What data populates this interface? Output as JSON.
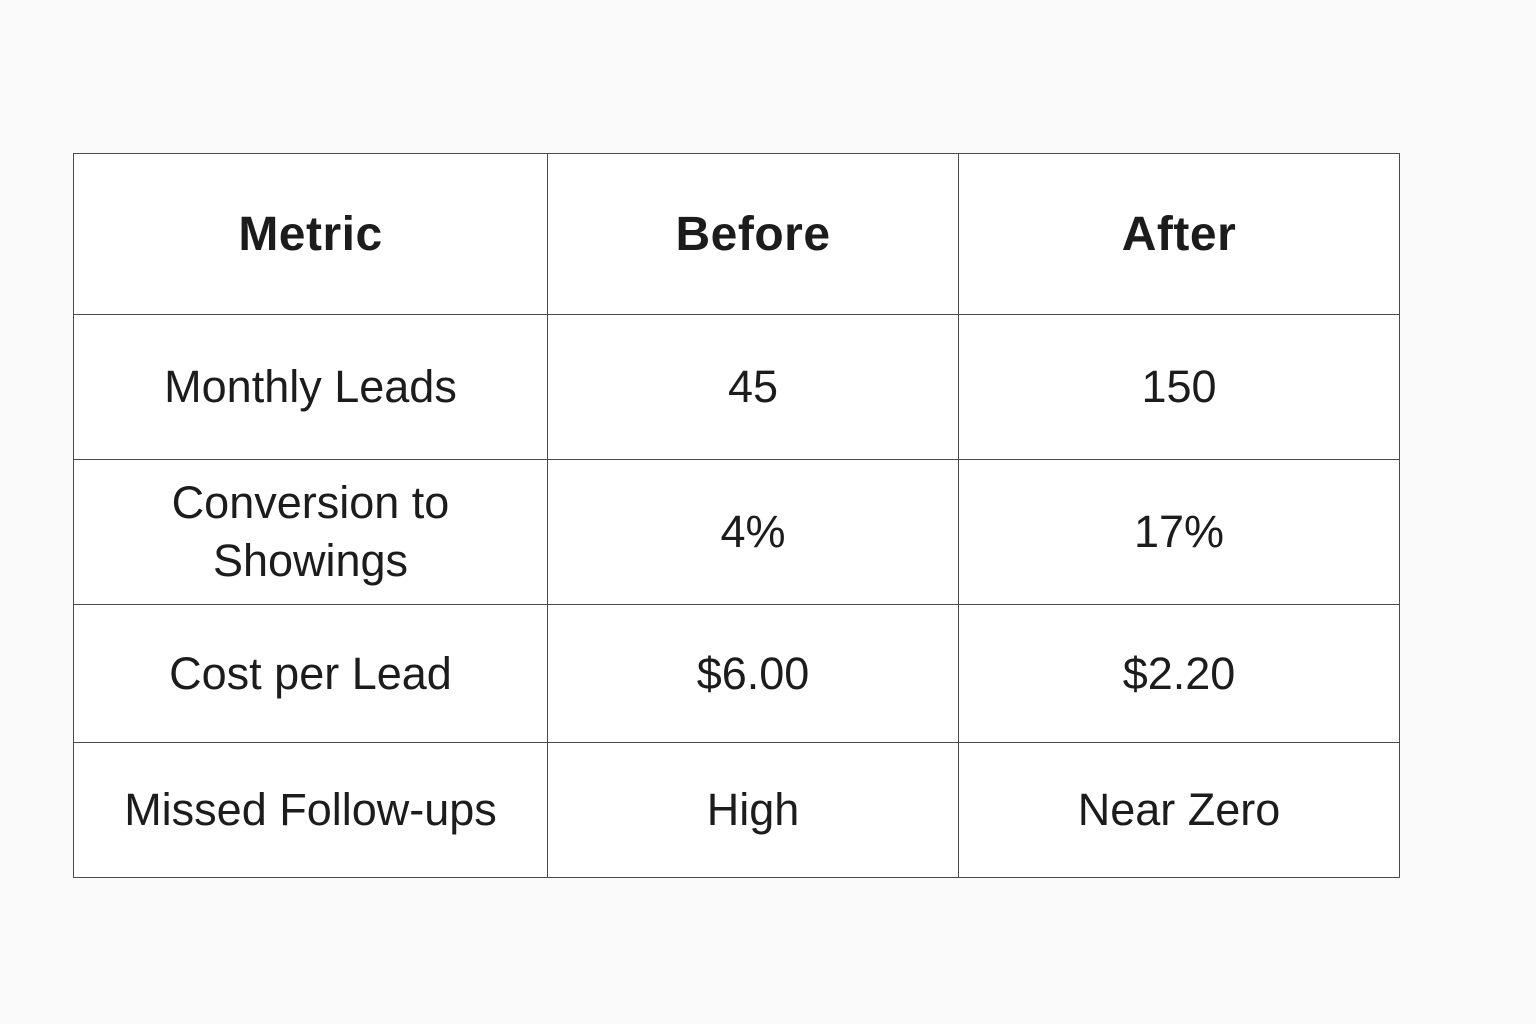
{
  "table": {
    "headers": [
      "Metric",
      "Before",
      "After"
    ],
    "rows": [
      [
        "Monthly Leads",
        "45",
        "150"
      ],
      [
        "Conversion to Showings",
        "4%",
        "17%"
      ],
      [
        "Cost per Lead",
        "$6.00",
        "$2.20"
      ],
      [
        "Missed Follow-ups",
        "High",
        "Near Zero"
      ]
    ]
  }
}
